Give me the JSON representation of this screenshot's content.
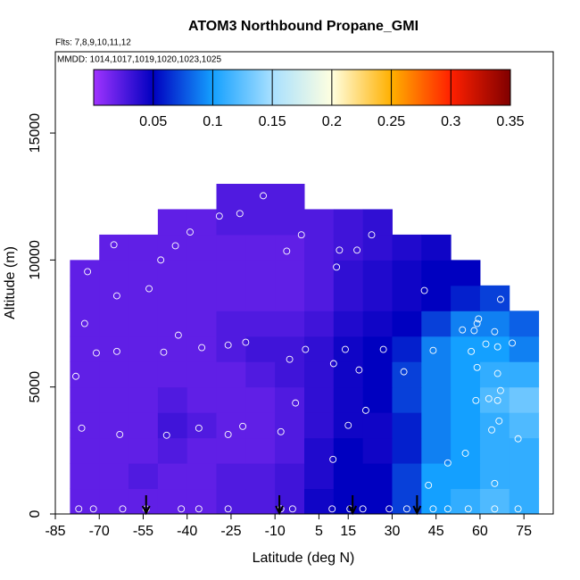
{
  "chart_data": {
    "type": "heatmap",
    "title": "ATOM3 Northbound Propane_GMI",
    "subtitle": "Flts: 7,8,9,10,11,12",
    "annotation": "MMDD: 1014,1017,1019,1020,1023,1025",
    "x_label": "Latitude (deg N)",
    "y_label": "Altitude (m)",
    "xlim": [
      -85,
      85
    ],
    "ylim": [
      0,
      18200
    ],
    "xticks": [
      -85,
      -70,
      -55,
      -40,
      -25,
      -10,
      5,
      15,
      30,
      45,
      60,
      75
    ],
    "yticks": [
      0,
      5000,
      10000,
      15000
    ],
    "x": [
      -75,
      -65,
      -55,
      -45,
      -35,
      -25,
      -15,
      -5,
      5,
      15,
      25,
      35,
      45,
      55,
      65,
      75
    ],
    "y": [
      500,
      1500,
      2500,
      3500,
      4500,
      5500,
      6500,
      7500,
      8500,
      9500,
      10500,
      11500,
      12500
    ],
    "z": [
      [
        0.02,
        0.02,
        0.02,
        0.02,
        0.02,
        0.025,
        0.025,
        0.03,
        0.045,
        0.05,
        0.05,
        0.07,
        0.1,
        0.11,
        0.12,
        0.11
      ],
      [
        0.02,
        0.02,
        0.025,
        0.02,
        0.02,
        0.025,
        0.025,
        0.03,
        0.04,
        0.05,
        0.05,
        0.07,
        0.1,
        0.1,
        0.11,
        0.11
      ],
      [
        0.02,
        0.02,
        0.02,
        0.025,
        0.02,
        0.02,
        0.02,
        0.025,
        0.04,
        0.05,
        0.045,
        0.06,
        0.09,
        0.1,
        0.11,
        0.11
      ],
      [
        0.02,
        0.02,
        0.02,
        0.03,
        0.025,
        0.02,
        0.02,
        0.025,
        0.035,
        0.045,
        0.045,
        0.06,
        0.09,
        0.1,
        0.11,
        0.12
      ],
      [
        0.02,
        0.02,
        0.02,
        0.025,
        0.02,
        0.02,
        0.02,
        0.025,
        0.035,
        0.045,
        0.05,
        0.07,
        0.09,
        0.1,
        0.12,
        0.13
      ],
      [
        0.02,
        0.02,
        0.02,
        0.02,
        0.02,
        0.02,
        0.025,
        0.03,
        0.035,
        0.045,
        0.05,
        0.07,
        0.09,
        0.1,
        0.11,
        0.11
      ],
      [
        0.02,
        0.02,
        0.02,
        0.02,
        0.02,
        0.025,
        0.03,
        0.03,
        0.035,
        0.045,
        0.05,
        0.06,
        0.09,
        0.1,
        0.1,
        0.09
      ],
      [
        0.02,
        0.02,
        0.02,
        0.02,
        0.02,
        0.025,
        0.025,
        0.025,
        0.03,
        0.04,
        0.045,
        0.05,
        0.07,
        0.09,
        0.09,
        0.08
      ],
      [
        0.02,
        0.02,
        0.02,
        0.02,
        0.02,
        0.02,
        0.02,
        0.02,
        0.025,
        0.035,
        0.04,
        0.045,
        0.05,
        0.06,
        0.07,
        null
      ],
      [
        0.02,
        0.02,
        0.02,
        0.02,
        0.02,
        0.02,
        0.02,
        0.02,
        0.025,
        0.035,
        0.04,
        0.045,
        0.05,
        0.05,
        null,
        null
      ],
      [
        null,
        0.02,
        0.02,
        0.02,
        0.02,
        0.02,
        0.02,
        0.02,
        0.025,
        0.03,
        0.035,
        0.04,
        0.045,
        null,
        null,
        null
      ],
      [
        null,
        null,
        null,
        0.02,
        0.02,
        0.025,
        0.025,
        0.025,
        0.025,
        0.03,
        0.035,
        null,
        null,
        null,
        null,
        null
      ],
      [
        null,
        null,
        null,
        null,
        null,
        0.025,
        0.025,
        0.025,
        null,
        null,
        null,
        null,
        null,
        null,
        null,
        null
      ]
    ],
    "colorbar": {
      "lim": [
        0,
        0.35
      ],
      "ticks": [
        0.05,
        0.1,
        0.15,
        0.2,
        0.25,
        0.3,
        0.35
      ],
      "stops": [
        0,
        0.05,
        0.1,
        0.15,
        0.2,
        0.25,
        0.3,
        0.35
      ],
      "colors": [
        "#a033ff",
        "#0000c0",
        "#14a0ff",
        "#a8e0ff",
        "#ffffe0",
        "#ffb000",
        "#ff2000",
        "#800000"
      ]
    },
    "points": {
      "x": [
        -77,
        -72,
        -62,
        -54,
        -42,
        -36,
        -26,
        -8,
        -4,
        9.5,
        15.6,
        20,
        29,
        35,
        44,
        49,
        56,
        65,
        73,
        -78,
        -76,
        -75,
        -74,
        -71,
        -65,
        -64,
        -64,
        -63,
        -53,
        -49,
        -48,
        -47,
        -44,
        -43,
        -39,
        -36,
        -35,
        -29,
        -26,
        -26,
        -22,
        -20,
        -21,
        -14,
        -8,
        -5,
        -3,
        -1,
        -6,
        0.4,
        9.8,
        10,
        11,
        12,
        14,
        15,
        18,
        18.7,
        21,
        23,
        27,
        32,
        34,
        41,
        42.4,
        44,
        49,
        54,
        55,
        57,
        58,
        59,
        59,
        59.5,
        58.6,
        62,
        63,
        64,
        65,
        65,
        66,
        66,
        66.5,
        67,
        66,
        71,
        73,
        67
      ],
      "y": [
        200,
        200,
        200,
        200,
        200,
        200,
        200,
        200,
        200,
        200,
        200,
        200,
        200,
        200,
        200,
        200,
        200,
        200,
        200,
        5420,
        3380,
        7500,
        9540,
        6340,
        10600,
        6400,
        8590,
        3130,
        8870,
        10000,
        6370,
        3100,
        10560,
        7040,
        11100,
        3380,
        6550,
        11730,
        3130,
        6650,
        11830,
        6760,
        3450,
        12530,
        3240,
        6090,
        4370,
        10990,
        10350,
        6480,
        2150,
        5920,
        9720,
        10390,
        6480,
        3490,
        10390,
        5670,
        4080,
        10990,
        6480,
        11550,
        5600,
        8800,
        1130,
        6440,
        2010,
        7250,
        2390,
        6400,
        7220,
        7500,
        5770,
        7680,
        4470,
        6690,
        4540,
        3310,
        1200,
        7180,
        5530,
        4470,
        3660,
        4860,
        6580,
        6730,
        2960,
        8450
      ]
    },
    "arrows": [
      -54,
      -8.5,
      16.5,
      38.5
    ]
  }
}
